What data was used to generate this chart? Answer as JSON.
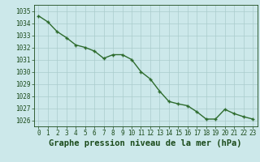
{
  "x": [
    0,
    1,
    2,
    3,
    4,
    5,
    6,
    7,
    8,
    9,
    10,
    11,
    12,
    13,
    14,
    15,
    16,
    17,
    18,
    19,
    20,
    21,
    22,
    23
  ],
  "y": [
    1034.6,
    1034.1,
    1033.3,
    1032.8,
    1032.2,
    1032.0,
    1031.7,
    1031.1,
    1031.4,
    1031.4,
    1031.0,
    1030.0,
    1029.4,
    1028.4,
    1027.55,
    1027.35,
    1027.2,
    1026.7,
    1026.1,
    1026.1,
    1026.9,
    1026.55,
    1026.3,
    1026.1
  ],
  "line_color": "#2d6b2d",
  "marker": "+",
  "bg_color": "#cce8ea",
  "grid_color": "#aacccc",
  "label_color": "#1a4a1a",
  "xlabel": "Graphe pression niveau de la mer (hPa)",
  "ylim": [
    1025.5,
    1035.5
  ],
  "yticks": [
    1026,
    1027,
    1028,
    1029,
    1030,
    1031,
    1032,
    1033,
    1034,
    1035
  ],
  "xticks": [
    0,
    1,
    2,
    3,
    4,
    5,
    6,
    7,
    8,
    9,
    10,
    11,
    12,
    13,
    14,
    15,
    16,
    17,
    18,
    19,
    20,
    21,
    22,
    23
  ],
  "xlim": [
    -0.5,
    23.5
  ],
  "tick_fontsize": 5.5,
  "xlabel_fontsize": 7.5,
  "line_width": 1.0,
  "marker_size": 3.5,
  "marker_edge_width": 1.0
}
